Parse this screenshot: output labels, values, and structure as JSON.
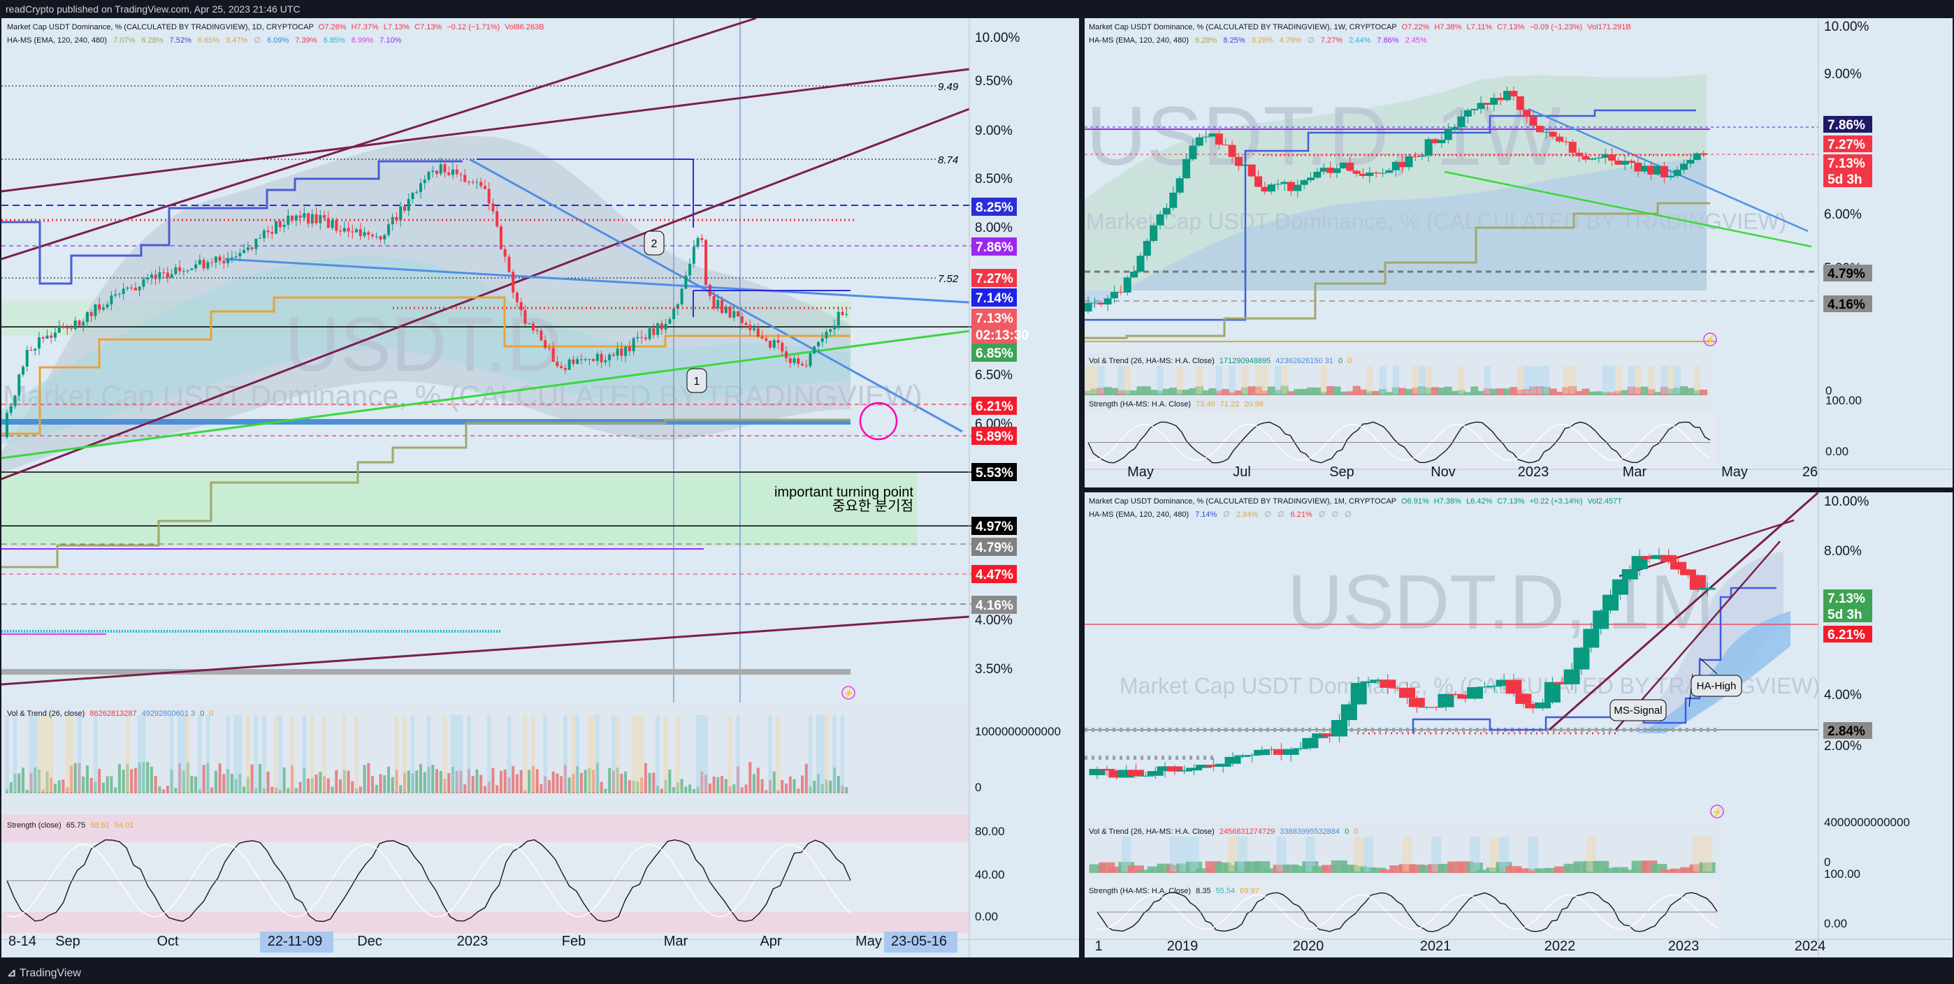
{
  "header": {
    "text": "readCrypto published on TradingView.com, Apr 25, 2023 21:46 UTC"
  },
  "footer": {
    "brand": "TradingView"
  },
  "colors": {
    "up": "#089981",
    "down": "#f23645",
    "bg": "#dde9f3",
    "dark": "#131722"
  },
  "left": {
    "legend1": {
      "name": "Market Cap USDT Dominance, % (CALCULATED BY TRADINGVIEW), 1D, CRYPTOCAP",
      "o": "O7.26%",
      "h": "H7.37%",
      "l": "L7.13%",
      "c": "C7.13%",
      "chg": "−0.12 (−1.71%)",
      "vol": "Vol86.263B"
    },
    "legend2": {
      "name": "HA-MS (EMA, 120, 240, 480)",
      "values": [
        "7.07%",
        "6.28%",
        "7.52%",
        "6.65%",
        "3.47%",
        "∅",
        "6.09%",
        "7.39%",
        "6.85%",
        "6.99%",
        "7.10%"
      ]
    },
    "watermark": {
      "ticker": "USDT.D",
      "name": "Market Cap USDT Dominance, % (CALCULATED BY TRADINGVIEW)"
    },
    "y_ticks": [
      "10.00%",
      "9.50%",
      "9.00%",
      "8.50%",
      "8.00%",
      "7.50%",
      "6.50%",
      "6.00%",
      "4.00%",
      "3.50%"
    ],
    "price_tags": [
      {
        "text": "8.25%",
        "bg": "#2a2ed6",
        "fg": "#ffffff"
      },
      {
        "text": "7.86%",
        "bg": "#9c27f0",
        "fg": "#ffffff"
      },
      {
        "text": "7.27%",
        "bg": "#f23645",
        "fg": "#ffffff"
      },
      {
        "text": "7.14%",
        "bg": "#1e22e6",
        "fg": "#ffffff"
      },
      {
        "text": "7.13%",
        "bg": "#f05a63",
        "fg": "#ffffff"
      },
      {
        "text": "02:13:30",
        "bg": "#f05a63",
        "fg": "#ffffff"
      },
      {
        "text": "6.85%",
        "bg": "#3ea353",
        "fg": "#ffffff"
      },
      {
        "text": "6.21%",
        "bg": "#f51a2a",
        "fg": "#ffffff"
      },
      {
        "text": "5.89%",
        "bg": "#f51a2a",
        "fg": "#ffffff"
      },
      {
        "text": "5.53%",
        "bg": "#000000",
        "fg": "#ffffff"
      },
      {
        "text": "4.97%",
        "bg": "#000000",
        "fg": "#ffffff"
      },
      {
        "text": "4.79%",
        "bg": "#808080",
        "fg": "#ffffff"
      },
      {
        "text": "4.47%",
        "bg": "#f51a2a",
        "fg": "#ffffff"
      },
      {
        "text": "4.16%",
        "bg": "#8a8a8a",
        "fg": "#ffffff"
      }
    ],
    "line_labels": [
      "9.49",
      "8.74",
      "7.52"
    ],
    "markers": [
      "1",
      "2"
    ],
    "annotation": {
      "en": "important turning point",
      "ko": "중요한 분기점"
    },
    "vol_legend": {
      "name": "Vol & Trend (26, close)",
      "v1": "86262813287",
      "v2": "49292800601 3",
      "z1": "0",
      "z2": "0"
    },
    "vol_axis": [
      "1000000000000",
      "0"
    ],
    "strength_legend": {
      "name": "Strength (close)",
      "v1": "65.75",
      "v2": "58.51",
      "v3": "54.01"
    },
    "strength_axis": [
      "80.00",
      "40.00",
      "0.00"
    ],
    "x_ticks": [
      "8-14",
      "Sep",
      "Oct",
      "22-11-09",
      "Dec",
      "2023",
      "Feb",
      "Mar",
      "Apr",
      "May",
      "23-05-16"
    ]
  },
  "top_right": {
    "legend1": {
      "name": "Market Cap USDT Dominance, % (CALCULATED BY TRADINGVIEW), 1W, CRYPTOCAP",
      "o": "O7.22%",
      "h": "H7.38%",
      "l": "L7.11%",
      "c": "C7.13%",
      "chg": "−0.09 (−1.23%)",
      "vol": "Vol171.291B"
    },
    "legend2": {
      "name": "HA-MS (EMA, 120, 240, 480)",
      "values": [
        "6.28%",
        "8.25%",
        "3.28%",
        "4.79%",
        "∅",
        "7.27%",
        "2.44%",
        "7.86%",
        "2.45%"
      ]
    },
    "watermark": {
      "ticker": "USDT.D, 1W",
      "name": "Market Cap USDT Dominance, % (CALCULATED BY TRADINGVIEW)"
    },
    "y_ticks": [
      "10.00%",
      "9.00%",
      "6.00%",
      "5.00%",
      "4.00%"
    ],
    "price_tags": [
      {
        "text": "7.86%",
        "bg": "#1f1a66",
        "fg": "#ffffff"
      },
      {
        "text": "7.27%",
        "bg": "#f23645",
        "fg": "#ffffff"
      },
      {
        "text": "7.13%",
        "bg": "#f23645",
        "fg": "#ffffff"
      },
      {
        "text": "5d 3h",
        "bg": "#f23645",
        "fg": "#ffffff"
      },
      {
        "text": "4.79%",
        "bg": "#8a8a8a",
        "fg": "#000000"
      },
      {
        "text": "4.16%",
        "bg": "#8a8a8a",
        "fg": "#000000"
      }
    ],
    "vol_legend": {
      "name": "Vol & Trend (26, HA-MS: H.A. Close)",
      "v1": "171290948895",
      "v2": "42362626150 31",
      "z1": "0",
      "z2": "0"
    },
    "vol_axis": [
      "0"
    ],
    "strength_legend": {
      "name": "Strength (HA-MS: H.A. Close)",
      "v1": "73.40",
      "v2": "71.22",
      "v3": "20.98"
    },
    "strength_axis": [
      "100.00",
      "0.00"
    ],
    "x_ticks": [
      "May",
      "Jul",
      "Sep",
      "Nov",
      "2023",
      "Mar",
      "May",
      "26"
    ]
  },
  "bottom_right": {
    "legend1": {
      "name": "Market Cap USDT Dominance, % (CALCULATED BY TRADINGVIEW), 1M, CRYPTOCAP",
      "o": "O6.91%",
      "h": "H7.38%",
      "l": "L6.42%",
      "c": "C7.13%",
      "chg": "+0.22 (+3.14%)",
      "vol": "Vol2.457T"
    },
    "legend2": {
      "name": "HA-MS (EMA, 120, 240, 480)",
      "values": [
        "7.14%",
        "∅",
        "2.84%",
        "∅",
        "∅",
        "6.21%",
        "∅",
        "∅",
        "∅"
      ]
    },
    "watermark": {
      "ticker": "USDT.D, 1M",
      "name": "Market Cap USDT Dominance, % (CALCULATED BY TRADINGVIEW)"
    },
    "y_ticks": [
      "10.00%",
      "8.00%",
      "4.00%",
      "2.00%"
    ],
    "price_tags": [
      {
        "text": "7.13%",
        "bg": "#3ea353",
        "fg": "#ffffff"
      },
      {
        "text": "5d 3h",
        "bg": "#3ea353",
        "fg": "#ffffff"
      },
      {
        "text": "6.21%",
        "bg": "#f51a2a",
        "fg": "#ffffff"
      },
      {
        "text": "2.84%",
        "bg": "#8a8a8a",
        "fg": "#000000"
      }
    ],
    "callouts": [
      "HA-High",
      "MS-Signal"
    ],
    "vol_legend": {
      "name": "Vol & Trend (26, HA-MS: H.A. Close)",
      "v1": "2456831274729",
      "v2": "33883995532884",
      "z1": "0",
      "z2": "0"
    },
    "vol_axis": [
      "4000000000000",
      "0"
    ],
    "strength_legend": {
      "name": "Strength (HA-MS: H.A. Close)",
      "v1": "8.35",
      "v2": "55.54",
      "v3": "69.97"
    },
    "strength_axis": [
      "100.00",
      "0.00"
    ],
    "x_ticks": [
      "1",
      "2019",
      "2020",
      "2021",
      "2022",
      "2023",
      "2024"
    ]
  },
  "chart_data": [
    {
      "type": "candlestick",
      "timeframe": "1D",
      "x": [
        "2022-08-14",
        "2022-09",
        "2022-10",
        "2022-11",
        "2022-12",
        "2023-01",
        "2023-02",
        "2023-03",
        "2023-04"
      ],
      "close": [
        6.1,
        7.1,
        7.4,
        7.9,
        8.3,
        7.3,
        6.8,
        7.1,
        7.13
      ],
      "high": [
        6.9,
        7.6,
        7.8,
        9.5,
        8.7,
        8.1,
        7.5,
        8.1,
        7.37
      ],
      "low": [
        5.9,
        6.6,
        6.9,
        7.2,
        7.6,
        6.6,
        6.4,
        6.7,
        6.5
      ],
      "ylim": [
        3.3,
        10.2
      ]
    },
    {
      "type": "candlestick",
      "timeframe": "1W",
      "x": [
        "2022-05",
        "2022-07",
        "2022-09",
        "2022-11",
        "2023-01",
        "2023-03",
        "2023-04"
      ],
      "close": [
        4.6,
        7.8,
        6.9,
        7.9,
        8.6,
        7.3,
        7.13
      ],
      "high": [
        5.2,
        8.6,
        7.6,
        9.5,
        8.9,
        7.9,
        7.38
      ],
      "low": [
        3.9,
        6.3,
        6.2,
        7.0,
        7.3,
        6.8,
        7.11
      ],
      "ylim": [
        3.0,
        10.0
      ]
    },
    {
      "type": "candlestick",
      "timeframe": "1M",
      "x": [
        "2018",
        "2019",
        "2020",
        "2021",
        "2022",
        "2023"
      ],
      "close": [
        1.8,
        2.2,
        2.8,
        3.2,
        4.8,
        7.13
      ],
      "high": [
        2.1,
        2.8,
        4.6,
        4.8,
        9.6,
        7.38
      ],
      "low": [
        1.5,
        1.7,
        2.2,
        2.4,
        2.8,
        6.42
      ],
      "ylim": [
        1.0,
        10.0
      ]
    }
  ]
}
